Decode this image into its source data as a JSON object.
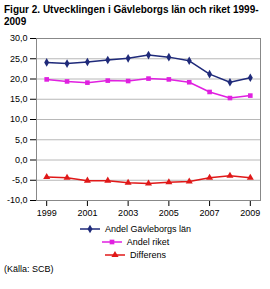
{
  "chart_data": {
    "type": "line",
    "title": "Figur 2. Utvecklingen i Gävleborgs län och riket 1999-2009",
    "caption": "(Källa: SCB)",
    "x": [
      1999,
      2000,
      2001,
      2002,
      2003,
      2004,
      2005,
      2006,
      2007,
      2008,
      2009
    ],
    "series": [
      {
        "name": "Andel Gävleborgs län",
        "color": "#1f2a7a",
        "marker": "diamond",
        "values": [
          24.1,
          23.8,
          24.2,
          24.7,
          25.1,
          25.9,
          25.4,
          24.5,
          21.2,
          19.2,
          20.3
        ]
      },
      {
        "name": "Andel riket",
        "color": "#e020e0",
        "marker": "square",
        "values": [
          19.9,
          19.4,
          19.1,
          19.6,
          19.5,
          20.1,
          19.9,
          19.2,
          16.8,
          15.3,
          15.9
        ]
      },
      {
        "name": "Differens",
        "color": "#e01818",
        "marker": "triangle",
        "values": [
          -4.2,
          -4.4,
          -5.1,
          -5.1,
          -5.6,
          -5.8,
          -5.5,
          -5.3,
          -4.4,
          -3.9,
          -4.4
        ]
      }
    ],
    "xlim": [
      1998.5,
      2009.5
    ],
    "xticks": [
      1999,
      2001,
      2003,
      2005,
      2007,
      2009
    ],
    "ylim": [
      -10,
      30
    ],
    "yticks": [
      {
        "value": -10,
        "label": "-10,0"
      },
      {
        "value": -5,
        "label": "-5,0"
      },
      {
        "value": 0,
        "label": "0,0"
      },
      {
        "value": 5,
        "label": "5,0"
      },
      {
        "value": 10,
        "label": "10,0"
      },
      {
        "value": 15,
        "label": "15,0"
      },
      {
        "value": 20,
        "label": "20,0"
      },
      {
        "value": 25,
        "label": "25,0"
      },
      {
        "value": 30,
        "label": "30,0"
      }
    ],
    "grid": true,
    "legend": "bottom"
  }
}
